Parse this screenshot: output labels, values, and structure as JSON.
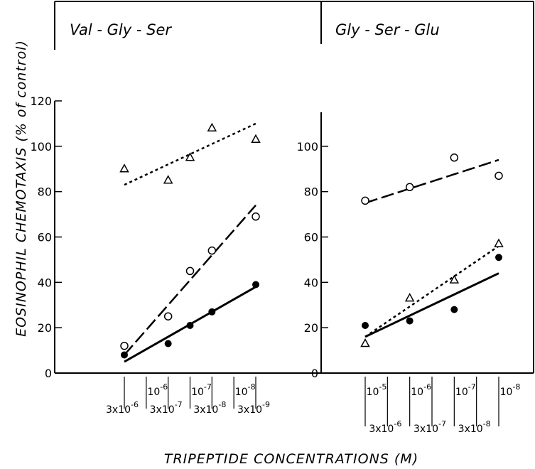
{
  "chart_data": [
    {
      "type": "scatter",
      "title": "Val - Gly - Ser",
      "ylabel": "EOSINOPHIL CHEMOTAXIS (% of control)",
      "xlabel": "TRIPEPTIDE CONCENTRATIONS (M)",
      "ylim": [
        0,
        120
      ],
      "yticks": [
        "0",
        "20",
        "40",
        "60",
        "80",
        "100",
        "120"
      ],
      "x_categories": [
        "3x10^-6",
        "10^-6",
        "3x10^-7",
        "10^-7",
        "3x10^-8",
        "10^-8",
        "3x10^-9"
      ],
      "xtick_labels_upper": [
        "10-6",
        "10-7",
        "10-8"
      ],
      "xtick_labels_lower": [
        "3x10-6",
        "3x10-7",
        "3x10-8",
        "3x10-9"
      ],
      "series": [
        {
          "marker": "triangle-open",
          "line": "dotted",
          "x": [
            "3x10^-6",
            "3x10^-7",
            "10^-7",
            "3x10^-8",
            "3x10^-9"
          ],
          "y": [
            90,
            85,
            95,
            108,
            103
          ],
          "fit": [
            83,
            110
          ]
        },
        {
          "marker": "circle-open",
          "line": "dashed",
          "x": [
            "3x10^-6",
            "3x10^-7",
            "10^-7",
            "3x10^-8",
            "3x10^-9"
          ],
          "y": [
            12,
            25,
            45,
            54,
            69
          ],
          "fit": [
            8,
            74
          ]
        },
        {
          "marker": "circle-filled",
          "line": "solid",
          "x": [
            "3x10^-6",
            "3x10^-7",
            "10^-7",
            "3x10^-8",
            "3x10^-9"
          ],
          "y": [
            8,
            13,
            21,
            27,
            39
          ],
          "fit": [
            5,
            38
          ]
        }
      ]
    },
    {
      "type": "scatter",
      "title": "Gly - Ser - Glu",
      "ylim": [
        0,
        120
      ],
      "yticks": [
        "0",
        "20",
        "40",
        "60",
        "80",
        "100"
      ],
      "x_categories": [
        "10^-5",
        "3x10^-6",
        "10^-6",
        "3x10^-7",
        "10^-7",
        "3x10^-8",
        "10^-8"
      ],
      "xtick_labels_upper": [
        "10-5",
        "10-6",
        "10-7",
        "10-8"
      ],
      "xtick_labels_lower": [
        "3x10-6",
        "3x10-7",
        "3x10-8"
      ],
      "series": [
        {
          "marker": "circle-open",
          "line": "dashed",
          "x": [
            "10^-5",
            "10^-6",
            "10^-7",
            "10^-8"
          ],
          "y": [
            76,
            82,
            95,
            87
          ],
          "fit": [
            75,
            94
          ]
        },
        {
          "marker": "triangle-open",
          "line": "dotted",
          "x": [
            "10^-5",
            "10^-6",
            "10^-7",
            "10^-8"
          ],
          "y": [
            13,
            33,
            41,
            57
          ],
          "fit": [
            16,
            56
          ]
        },
        {
          "marker": "circle-filled",
          "line": "solid",
          "x": [
            "10^-5",
            "10^-6",
            "10^-7",
            "10^-8"
          ],
          "y": [
            21,
            23,
            28,
            51
          ],
          "fit": [
            16,
            44
          ]
        }
      ]
    }
  ]
}
